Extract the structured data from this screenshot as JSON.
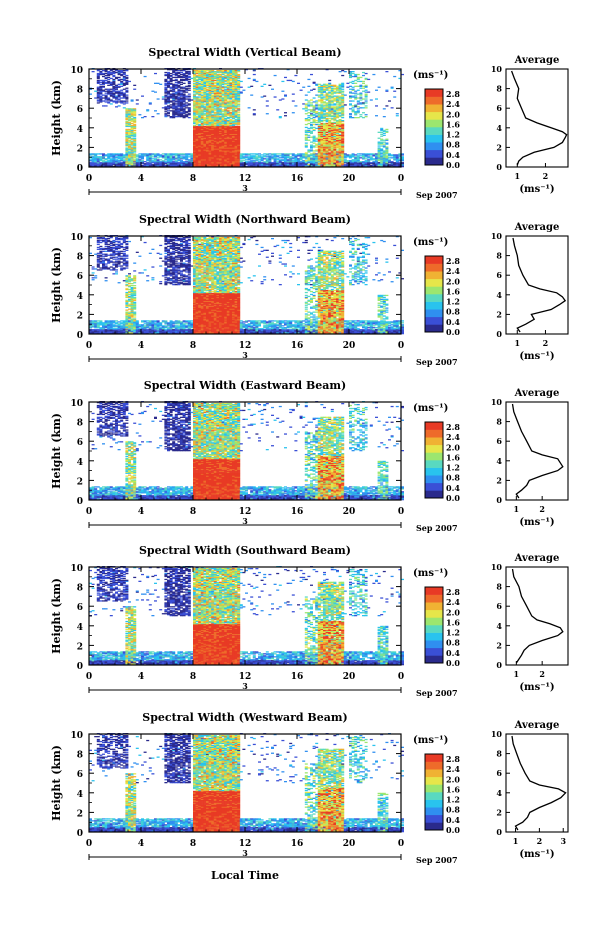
{
  "chart_data": [
    {
      "type": "heatmap",
      "title": "Spectral Width (Vertical Beam)",
      "ylabel": "Height (km)",
      "xlim": [
        0,
        24
      ],
      "ylim": [
        0,
        10
      ],
      "x_ticks": [
        "0",
        "4",
        "8",
        "12",
        "16",
        "20",
        "0"
      ],
      "y_ticks": [
        "0",
        "2",
        "4",
        "6",
        "8",
        "10"
      ],
      "date_label": "3",
      "date_suffix": "Sep 2007",
      "colorbar": {
        "label": "(ms⁻¹)",
        "ticks": [
          "0.0",
          "0.4",
          "0.8",
          "1.2",
          "1.6",
          "2.0",
          "2.4",
          "2.8"
        ],
        "range": [
          0,
          3
        ]
      },
      "profile": {
        "title": "Average",
        "xlabel": "(ms⁻¹)",
        "x_ticks": [
          "1",
          "2"
        ],
        "xlim": [
          0.6,
          2.8
        ],
        "heights": [
          0.2,
          0.6,
          1.0,
          1.5,
          2.0,
          2.5,
          3.0,
          3.3,
          3.6,
          4.0,
          4.5,
          5.0,
          6.0,
          7.0,
          8.0,
          9.0,
          9.8
        ],
        "values": [
          1.0,
          1.05,
          1.2,
          1.6,
          2.3,
          2.6,
          2.7,
          2.75,
          2.6,
          2.2,
          1.7,
          1.3,
          1.15,
          1.0,
          1.05,
          0.9,
          0.8
        ]
      },
      "source_tag": "s0"
    },
    {
      "type": "heatmap",
      "title": "Spectral Width (Northward Beam)",
      "ylabel": "Height (km)",
      "xlim": [
        0,
        24
      ],
      "ylim": [
        0,
        10
      ],
      "x_ticks": [
        "0",
        "4",
        "8",
        "12",
        "16",
        "20",
        "0"
      ],
      "y_ticks": [
        "0",
        "2",
        "4",
        "6",
        "8",
        "10"
      ],
      "date_label": "3",
      "date_suffix": "Sep 2007",
      "colorbar": {
        "label": "(ms⁻¹)",
        "ticks": [
          "0.0",
          "0.4",
          "0.8",
          "1.2",
          "1.6",
          "2.0",
          "2.4",
          "2.8"
        ],
        "range": [
          0,
          3
        ]
      },
      "profile": {
        "title": "Average",
        "xlabel": "(ms⁻¹)",
        "x_ticks": [
          "1",
          "2"
        ],
        "xlim": [
          0.6,
          2.8
        ],
        "heights": [
          0.2,
          0.6,
          1.0,
          1.5,
          2.0,
          2.5,
          3.0,
          3.4,
          3.8,
          4.2,
          4.6,
          5.0,
          6.0,
          7.0,
          8.0,
          9.0,
          9.8
        ],
        "values": [
          1.1,
          1.0,
          1.3,
          1.6,
          1.5,
          2.2,
          2.5,
          2.7,
          2.6,
          2.4,
          1.8,
          1.4,
          1.2,
          1.05,
          1.0,
          0.9,
          0.85
        ]
      },
      "source_tag": "s1"
    },
    {
      "type": "heatmap",
      "title": "Spectral Width (Eastward Beam)",
      "ylabel": "Height (km)",
      "xlim": [
        0,
        24
      ],
      "ylim": [
        0,
        10
      ],
      "x_ticks": [
        "0",
        "4",
        "8",
        "12",
        "16",
        "20",
        "0"
      ],
      "y_ticks": [
        "0",
        "2",
        "4",
        "6",
        "8",
        "10"
      ],
      "date_label": "3",
      "date_suffix": "Sep 2007",
      "colorbar": {
        "label": "(ms⁻¹)",
        "ticks": [
          "0.0",
          "0.4",
          "0.8",
          "1.2",
          "1.6",
          "2.0",
          "2.4",
          "2.8"
        ],
        "range": [
          0,
          3
        ]
      },
      "profile": {
        "title": "Average",
        "xlabel": "(ms⁻¹)",
        "x_ticks": [
          "1",
          "2"
        ],
        "xlim": [
          0.6,
          3.0
        ],
        "heights": [
          0.2,
          0.6,
          1.0,
          1.5,
          2.0,
          2.5,
          3.0,
          3.4,
          3.8,
          4.2,
          4.6,
          5.0,
          6.0,
          7.0,
          8.0,
          9.0,
          9.8
        ],
        "values": [
          1.1,
          1.0,
          1.2,
          1.4,
          1.5,
          2.0,
          2.6,
          2.8,
          2.7,
          2.6,
          2.0,
          1.6,
          1.4,
          1.2,
          1.05,
          0.9,
          0.85
        ]
      },
      "source_tag": "s2"
    },
    {
      "type": "heatmap",
      "title": "Spectral Width (Southward Beam)",
      "ylabel": "Height (km)",
      "xlim": [
        0,
        24
      ],
      "ylim": [
        0,
        10
      ],
      "x_ticks": [
        "0",
        "4",
        "8",
        "12",
        "16",
        "20",
        "0"
      ],
      "y_ticks": [
        "0",
        "2",
        "4",
        "6",
        "8",
        "10"
      ],
      "date_label": "3",
      "date_suffix": "Sep 2007",
      "colorbar": {
        "label": "(ms⁻¹)",
        "ticks": [
          "0.0",
          "0.4",
          "0.8",
          "1.2",
          "1.6",
          "2.0",
          "2.4",
          "2.8"
        ],
        "range": [
          0,
          3
        ]
      },
      "profile": {
        "title": "Average",
        "xlabel": "(ms⁻¹)",
        "x_ticks": [
          "1",
          "2"
        ],
        "xlim": [
          0.6,
          3.0
        ],
        "heights": [
          0.2,
          0.6,
          1.0,
          1.5,
          2.0,
          2.5,
          3.0,
          3.4,
          3.8,
          4.2,
          4.6,
          5.0,
          6.0,
          7.0,
          8.0,
          9.0,
          9.8
        ],
        "values": [
          1.0,
          1.1,
          1.2,
          1.3,
          1.5,
          2.0,
          2.6,
          2.8,
          2.7,
          2.3,
          1.8,
          1.6,
          1.4,
          1.2,
          1.1,
          0.9,
          0.85
        ]
      },
      "source_tag": "s3"
    },
    {
      "type": "heatmap",
      "title": "Spectral Width (Westward Beam)",
      "ylabel": "Height (km)",
      "xlim": [
        0,
        24
      ],
      "ylim": [
        0,
        10
      ],
      "x_ticks": [
        "0",
        "4",
        "8",
        "12",
        "16",
        "20",
        "0"
      ],
      "y_ticks": [
        "0",
        "2",
        "4",
        "6",
        "8",
        "10"
      ],
      "date_label": "3",
      "date_suffix": "Sep 2007",
      "colorbar": {
        "label": "(ms⁻¹)",
        "ticks": [
          "0.0",
          "0.4",
          "0.8",
          "1.2",
          "1.6",
          "2.0",
          "2.4",
          "2.8"
        ],
        "range": [
          0,
          3
        ]
      },
      "profile": {
        "title": "Average",
        "xlabel": "(ms⁻¹)",
        "x_ticks": [
          "1",
          "2",
          "3"
        ],
        "xlim": [
          0.6,
          3.2
        ],
        "heights": [
          0.2,
          0.6,
          1.0,
          1.5,
          2.0,
          2.5,
          3.0,
          3.5,
          4.0,
          4.4,
          4.8,
          5.2,
          6.0,
          7.0,
          8.0,
          9.0,
          9.8
        ],
        "values": [
          1.1,
          1.0,
          1.3,
          1.5,
          1.6,
          2.0,
          2.5,
          2.9,
          3.1,
          2.8,
          2.0,
          1.6,
          1.4,
          1.2,
          1.05,
          0.9,
          0.85
        ]
      },
      "source_tag": "s4"
    }
  ],
  "shared": {
    "xlabel": "Local Time"
  },
  "colormap": [
    "#2a2a8c",
    "#3a4fd6",
    "#2f8ff0",
    "#29c3ee",
    "#59d9c0",
    "#9ce66f",
    "#e6e64a",
    "#f0b233",
    "#ee6b2a",
    "#e83a25"
  ]
}
